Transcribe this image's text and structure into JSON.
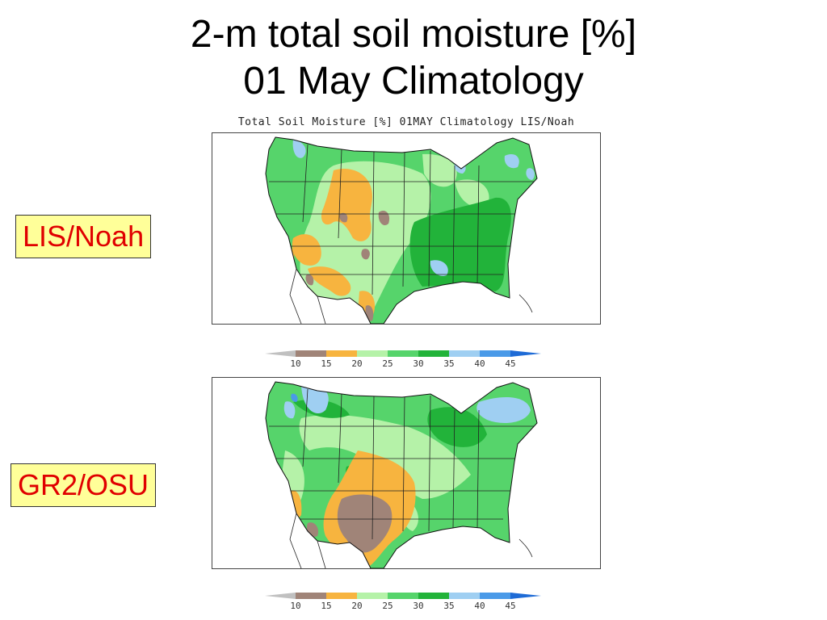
{
  "slide": {
    "title_line1": "2-m total soil moisture [%]",
    "title_line2": "01 May Climatology"
  },
  "plot_title": "Total Soil Moisture [%] 01MAY Climatology LIS/Noah",
  "panels": [
    {
      "label": "LIS/Noah"
    },
    {
      "label": "GR2/OSU"
    }
  ],
  "colorbar": {
    "ticks": [
      "10",
      "15",
      "20",
      "25",
      "30",
      "35",
      "40",
      "45"
    ],
    "colors": [
      "#c0c0c0",
      "#a08478",
      "#f7b43f",
      "#b5f2a8",
      "#56d46b",
      "#22b33a",
      "#9fcff2",
      "#4a9ae8",
      "#1e6bd6"
    ]
  },
  "legend_colors": {
    "lt10": "#c0c0c0",
    "10-15": "#a08478",
    "15-20": "#f7b43f",
    "20-25": "#b5f2a8",
    "25-30": "#56d46b",
    "30-35": "#22b33a",
    "35-40": "#9fcff2",
    "40-45": "#4a9ae8",
    "gt45": "#1e6bd6"
  }
}
